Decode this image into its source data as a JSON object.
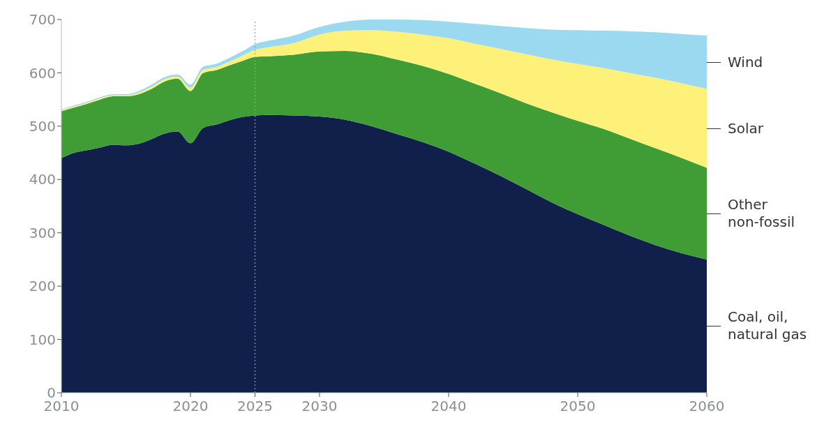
{
  "chart_data": {
    "type": "area",
    "stacked": true,
    "x": [
      2010,
      2011,
      2012,
      2013,
      2014,
      2015,
      2016,
      2017,
      2018,
      2019,
      2020,
      2021,
      2022,
      2023,
      2024,
      2025,
      2026,
      2028,
      2030,
      2032,
      2034,
      2036,
      2038,
      2040,
      2042,
      2044,
      2046,
      2048,
      2050,
      2052,
      2054,
      2056,
      2058,
      2060
    ],
    "series": [
      {
        "name": "Coal, oil, natural gas",
        "color": "#10204a",
        "values": [
          440,
          450,
          455,
          460,
          465,
          464,
          467,
          476,
          486,
          490,
          468,
          497,
          503,
          511,
          517,
          520,
          521,
          520,
          518,
          512,
          500,
          485,
          470,
          452,
          430,
          407,
          382,
          357,
          335,
          315,
          295,
          277,
          262,
          250
        ]
      },
      {
        "name": "Other non-fossil",
        "color": "#409c35",
        "values": [
          88,
          85,
          87,
          90,
          91,
          92,
          93,
          94,
          98,
          99,
          98,
          103,
          102,
          103,
          105,
          110,
          110,
          114,
          122,
          129,
          136,
          140,
          143,
          146,
          150,
          155,
          161,
          169,
          175,
          180,
          182,
          182,
          179,
          172
        ]
      },
      {
        "name": "Solar",
        "color": "#fef17a",
        "values": [
          2,
          2,
          2,
          2,
          2,
          2,
          3,
          4,
          4,
          4,
          6,
          6,
          6,
          7,
          10,
          13,
          17,
          22,
          32,
          38,
          44,
          52,
          59,
          67,
          75,
          83,
          92,
          99,
          107,
          114,
          123,
          132,
          140,
          148
        ]
      },
      {
        "name": "Wind",
        "color": "#9ad9f0",
        "values": [
          1,
          2,
          2,
          2,
          2,
          2,
          3,
          4,
          4,
          4,
          6,
          6,
          6,
          7,
          8,
          11,
          12,
          14,
          14,
          17,
          20,
          23,
          27,
          31,
          37,
          43,
          49,
          56,
          63,
          70,
          78,
          85,
          92,
          100
        ]
      }
    ],
    "xlim": [
      2010,
      2060
    ],
    "xticks": [
      2010,
      2020,
      2025,
      2030,
      2040,
      2050,
      2060
    ],
    "ylim": [
      0,
      700
    ],
    "yticks": [
      0,
      100,
      200,
      300,
      400,
      500,
      600,
      700
    ],
    "ref_lines": [
      {
        "axis": "x",
        "value": 2025,
        "color": "#999999",
        "line_style": "dotted"
      }
    ],
    "grid": false
  }
}
